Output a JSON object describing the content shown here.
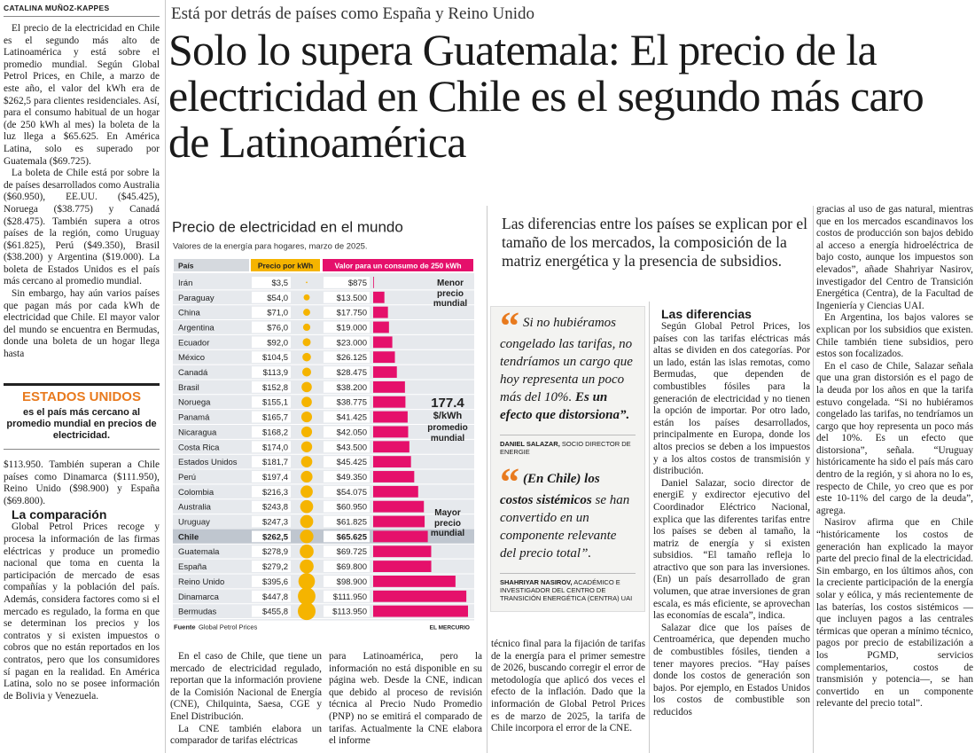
{
  "byline": "CATALINA MUÑOZ-KAPPES",
  "kicker": "Está por detrás de países como España y Reino Unido",
  "headline": "Solo lo supera Guatemala: El precio de la electricidad en Chile es el segundo más caro de Latinoamérica",
  "lead": "Las diferencias entre los países se explican por el tamaño de los mercados, la composición de la matriz energética y la presencia de subsidios.",
  "left_column": {
    "paragraphs": [
      "El precio de la electricidad en Chile es el segundo más alto de Latinoamérica y está sobre el promedio mundial. Según Global Petrol Prices, en Chile, a marzo de este año, el valor del kWh era de $262,5 para clientes residenciales. Así, para el consumo habitual de un hogar (de 250 kWh al mes) la boleta de la luz llega a $65.625. En América Latina, solo es superado por Guatemala ($69.725).",
      "La boleta de Chile está por sobre la de países desarrollados como Australia ($60.950), EE.UU. ($45.425), Noruega ($38.775) y Canadá ($28.475). También supera a otros países de la región, como Uruguay ($61.825), Perú ($49.350), Brasil ($38.200) y Argentina ($19.000). La boleta de Estados Unidos es el país más cercano al promedio mundial.",
      "Sin embargo, hay aún varios países que pagan más por cada kWh de electricidad que Chile. El mayor valor del mundo se encuentra en Bermudas, donde una boleta de un hogar llega hasta"
    ],
    "highlight": {
      "title": "ESTADOS UNIDOS",
      "text": "es el país más cercano al promedio mundial en precios de electricidad."
    },
    "continuation": "$113.950. También superan a Chile países como Dinamarca ($111.950), Reino Unido ($98.900) y España ($69.800).",
    "subhead": "La comparación",
    "paragraphs_2": [
      "Global Petrol Prices recoge y procesa la información de las firmas eléctricas y produce un promedio nacional que toma en cuenta la participación de mercado de esas compañías y la población del país. Además, considera factores como si el mercado es regulado, la forma en que se determinan los precios y los contratos y si existen impuestos o cobros que no están reportados en los contratos, pero que los consumidores sí pagan en la realidad. En América Latina, solo no se posee información de Bolivia y Venezuela."
    ]
  },
  "bottom_columns": [
    [
      "En el caso de Chile, que tiene un mercado de electricidad regulado, reportan que la información proviene de la Comisión Nacional de Energía (CNE), Chilquinta, Saesa, CGE y Enel Distribución.",
      "La CNE también elabora un comparador de tarifas eléctricas"
    ],
    [
      "para Latinoamérica, pero la información no está disponible en su página web. Desde la CNE, indican que debido al proceso de revisión técnica al Precio Nudo Promedio (PNP) no se emitirá el comparado de tarifas. Actualmente la CNE elabora el informe"
    ],
    [
      "técnico final para la fijación de tarifas de la energía para el primer semestre de 2026, buscando corregir el error de metodología que aplicó dos veces el efecto de la inflación. Dado que la información de Global Petrol Prices es de marzo de 2025, la tarifa de Chile incorpora el error de la CNE."
    ]
  ],
  "quote_mark": "“",
  "quotes": [
    {
      "parts": [
        "Si no hubiéramos congelado las tarifas, no tendríamos un cargo que hoy representa un poco más del 10%. ",
        "Es un efecto que distorsiona”."
      ],
      "name": "DANIEL SALAZAR,",
      "role": "SOCIO DIRECTOR DE ENERGIE"
    },
    {
      "parts": [
        "(En Chile) los costos sistémicos",
        " se han convertido en un componente relevante del precio total”."
      ],
      "name": "SHAHRIYAR NASIROV,",
      "role": "ACADÉMICO E INVESTIGADOR DEL CENTRO DE TRANSICIÓN ENERGÉTICA (CENTRA) UAI"
    }
  ],
  "diferencias": {
    "subhead": "Las diferencias",
    "columns": [
      [
        "Según Global Petrol Prices, los países con las tarifas eléctricas más altas se dividen en dos categorías. Por un lado, están las islas remotas, como Bermudas, que dependen de combustibles fósiles para la generación de electricidad y no tienen la opción de importar. Por otro lado, están los países desarrollados, principalmente en Europa, donde los altos precios se deben a los impuestos y a los altos costos de transmisión y distribución.",
        "Daniel Salazar, socio director de energiE y exdirector ejecutivo del Coordinador Eléctrico Nacional, explica que las diferentes tarifas entre los países se deben al tamaño, la matriz de energía y si existen subsidios. “El tamaño refleja lo atractivo que son para las inversiones. (En) un país desarrollado de gran volumen, que atrae inversiones de gran escala, es más eficiente, se aprovechan las economías de escala”, indica.",
        "Salazar dice que los países de Centroamérica, que dependen mucho de combustibles fósiles, tienden a tener mayores precios. “Hay países donde los costos de generación son bajos. Por ejemplo, en Estados Unidos los costos de combustible son reducidos"
      ],
      [
        "gracias al uso de gas natural, mientras que en los mercados escandinavos los costos de producción son bajos debido al acceso a energía hidroeléctrica de bajo costo, aunque los impuestos son elevados”, añade Shahriyar Nasirov, investigador del Centro de Transición Energética (Centra), de la Facultad de Ingeniería y Ciencias UAI.",
        "En Argentina, los bajos valores se explican por los subsidios que existen. Chile también tiene subsidios, pero estos son focalizados.",
        "En el caso de Chile, Salazar señala que una gran distorsión es el pago de la deuda por los años en que la tarifa estuvo congelada. “Si no hubiéramos congelado las tarifas, no tendríamos un cargo que hoy representa un poco más del 10%. Es un efecto que distorsiona”, señala. “Uruguay históricamente ha sido el país más caro dentro de la región, y si ahora no lo es, respecto de Chile, yo creo que es por este 10-11% del cargo de la deuda”, agrega.",
        "Nasirov afirma que en Chile “históricamente los costos de generación han explicado la mayor parte del precio final de la electricidad. Sin embargo, en los últimos años, con la creciente participación de la energía solar y eólica, y más recientemente de las baterías, los costos sistémicos —que incluyen pagos a las centrales térmicas que operan a mínimo técnico, pagos por precio de estabilización a los PGMD, servicios complementarios, costos de transmisión y potencia—, se han convertido en un componente relevante del precio total”."
      ]
    ]
  },
  "chart": {
    "title": "Precio de electricidad en el mundo",
    "subtitle": "Valores de la energía para hogares, marzo de 2025.",
    "columns": [
      "País",
      "Precio por kWh",
      "Valor para un consumo de 250 kWh"
    ],
    "price_color": "#f5b400",
    "value_color": "#e5106b",
    "rows": [
      {
        "country": "Irán",
        "price": 3.5,
        "price_label": "$3,5",
        "value": 875,
        "value_label": "$875"
      },
      {
        "country": "Paraguay",
        "price": 54.0,
        "price_label": "$54,0",
        "value": 13500,
        "value_label": "$13.500"
      },
      {
        "country": "China",
        "price": 71.0,
        "price_label": "$71,0",
        "value": 17750,
        "value_label": "$17.750"
      },
      {
        "country": "Argentina",
        "price": 76.0,
        "price_label": "$76,0",
        "value": 19000,
        "value_label": "$19.000"
      },
      {
        "country": "Ecuador",
        "price": 92.0,
        "price_label": "$92,0",
        "value": 23000,
        "value_label": "$23.000"
      },
      {
        "country": "México",
        "price": 104.5,
        "price_label": "$104,5",
        "value": 26125,
        "value_label": "$26.125"
      },
      {
        "country": "Canadá",
        "price": 113.9,
        "price_label": "$113,9",
        "value": 28475,
        "value_label": "$28.475"
      },
      {
        "country": "Brasil",
        "price": 152.8,
        "price_label": "$152,8",
        "value": 38200,
        "value_label": "$38.200"
      },
      {
        "country": "Noruega",
        "price": 155.1,
        "price_label": "$155,1",
        "value": 38775,
        "value_label": "$38.775"
      },
      {
        "country": "Panamá",
        "price": 165.7,
        "price_label": "$165,7",
        "value": 41425,
        "value_label": "$41.425"
      },
      {
        "country": "Nicaragua",
        "price": 168.2,
        "price_label": "$168,2",
        "value": 42050,
        "value_label": "$42.050"
      },
      {
        "country": "Costa Rica",
        "price": 174.0,
        "price_label": "$174,0",
        "value": 43500,
        "value_label": "$43.500"
      },
      {
        "country": "Estados Unidos",
        "price": 181.7,
        "price_label": "$181,7",
        "value": 45425,
        "value_label": "$45.425"
      },
      {
        "country": "Perú",
        "price": 197.4,
        "price_label": "$197,4",
        "value": 49350,
        "value_label": "$49.350"
      },
      {
        "country": "Colombia",
        "price": 216.3,
        "price_label": "$216,3",
        "value": 54075,
        "value_label": "$54.075"
      },
      {
        "country": "Australia",
        "price": 243.8,
        "price_label": "$243,8",
        "value": 60950,
        "value_label": "$60.950"
      },
      {
        "country": "Uruguay",
        "price": 247.3,
        "price_label": "$247,3",
        "value": 61825,
        "value_label": "$61.825"
      },
      {
        "country": "Chile",
        "price": 262.5,
        "price_label": "$262,5",
        "value": 65625,
        "value_label": "$65.625",
        "highlighted": true
      },
      {
        "country": "Guatemala",
        "price": 278.9,
        "price_label": "$278,9",
        "value": 69725,
        "value_label": "$69.725"
      },
      {
        "country": "España",
        "price": 279.2,
        "price_label": "$279,2",
        "value": 69800,
        "value_label": "$69.800"
      },
      {
        "country": "Reino Unido",
        "price": 395.6,
        "price_label": "$395,6",
        "value": 98900,
        "value_label": "$98.900"
      },
      {
        "country": "Dinamarca",
        "price": 447.8,
        "price_label": "$447,8",
        "value": 111950,
        "value_label": "$111.950"
      },
      {
        "country": "Bermudas",
        "price": 455.8,
        "price_label": "$455,8",
        "value": 113950,
        "value_label": "$113.950"
      }
    ],
    "annotations": {
      "min_label": "Menor precio mundial",
      "average": 177.4,
      "average_unit": "$/kWh",
      "average_label": "promedio mundial",
      "max_label": "Mayor precio mundial"
    },
    "source_label": "Fuente",
    "source": "Global Petrol Prices",
    "credit": "EL MERCURIO"
  }
}
